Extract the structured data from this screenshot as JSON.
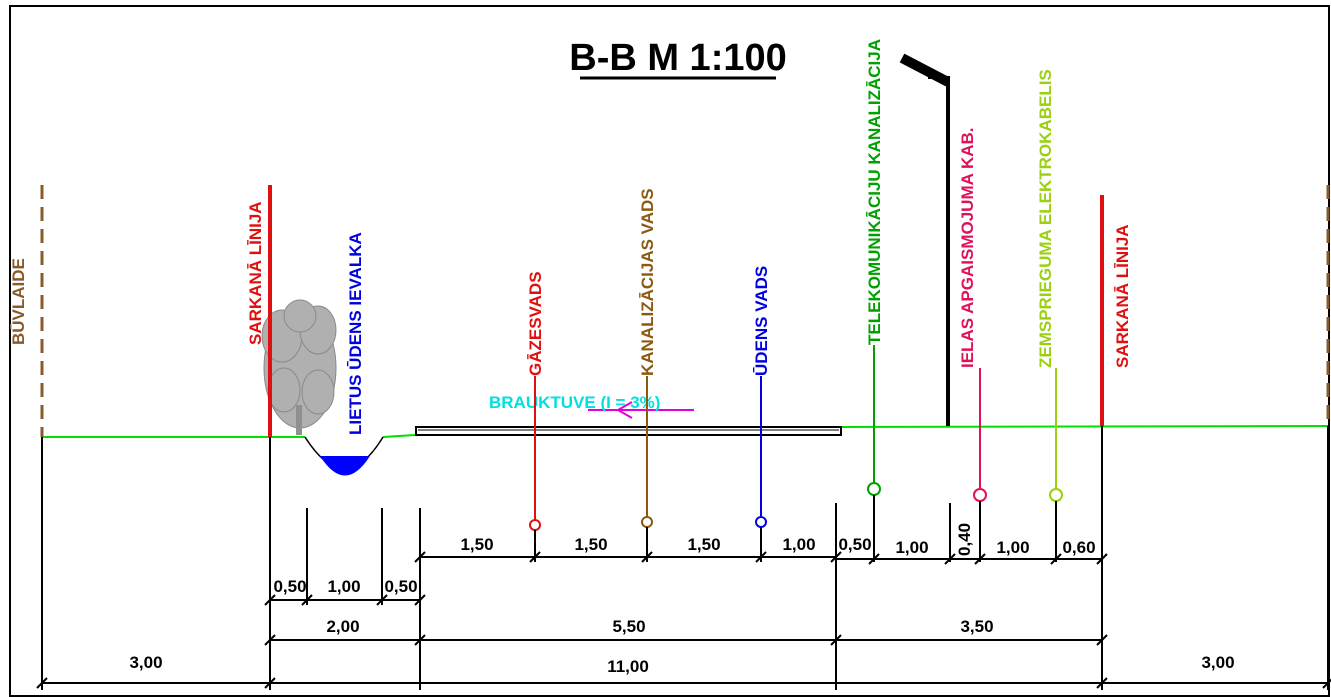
{
  "title": "B-B M 1:100",
  "colors": {
    "ground": "#00e000",
    "red_line": "#e01010",
    "building_line": "#8b5a2b",
    "gas": "#e01010",
    "sewer": "#8b5a10",
    "water": "#0000e0",
    "telecom": "#00a000",
    "street_lighting": "#e0105a",
    "low_voltage": "#9ad010",
    "road_label": "#00e0e0",
    "slope_arrow": "#e000e0",
    "ditch_water": "#0000ff",
    "tree": "#a0a0a0"
  },
  "labels": {
    "building_line_left": "BŪVLAIDE",
    "red_line_left": "SARKANĀ LĪNIJA",
    "rainwater_ditch": "LIETUS ŪDENS IEVALKA",
    "gas_pipe": "GĀZESVADS",
    "sewer_pipe": "KANALIZĀCIJAS VADS",
    "water_pipe": "ŪDENS VADS",
    "telecom_sewer": "TELEKOMUNIKĀCIJU KANALIZĀCIJA",
    "street_lighting_cable": "IELAS APGAISMOJUMA KAB.",
    "low_voltage_cable": "ZEMSPRIEGUMA ELEKTROKABELIS",
    "red_line_right": "SARKANĀ LĪNIJA",
    "road": "BRAUKTUVE (I = 3%)"
  },
  "dimensions": {
    "row1": [
      "1,50",
      "1,50",
      "1,50",
      "1,00",
      "0,50",
      "1,00",
      "0,40",
      "1,00",
      "0,60"
    ],
    "row2": [
      "0,50",
      "1,00",
      "0,50"
    ],
    "row3": [
      "2,00",
      "5,50",
      "3,50"
    ],
    "row4": [
      "3,00",
      "11,00",
      "3,00"
    ]
  }
}
